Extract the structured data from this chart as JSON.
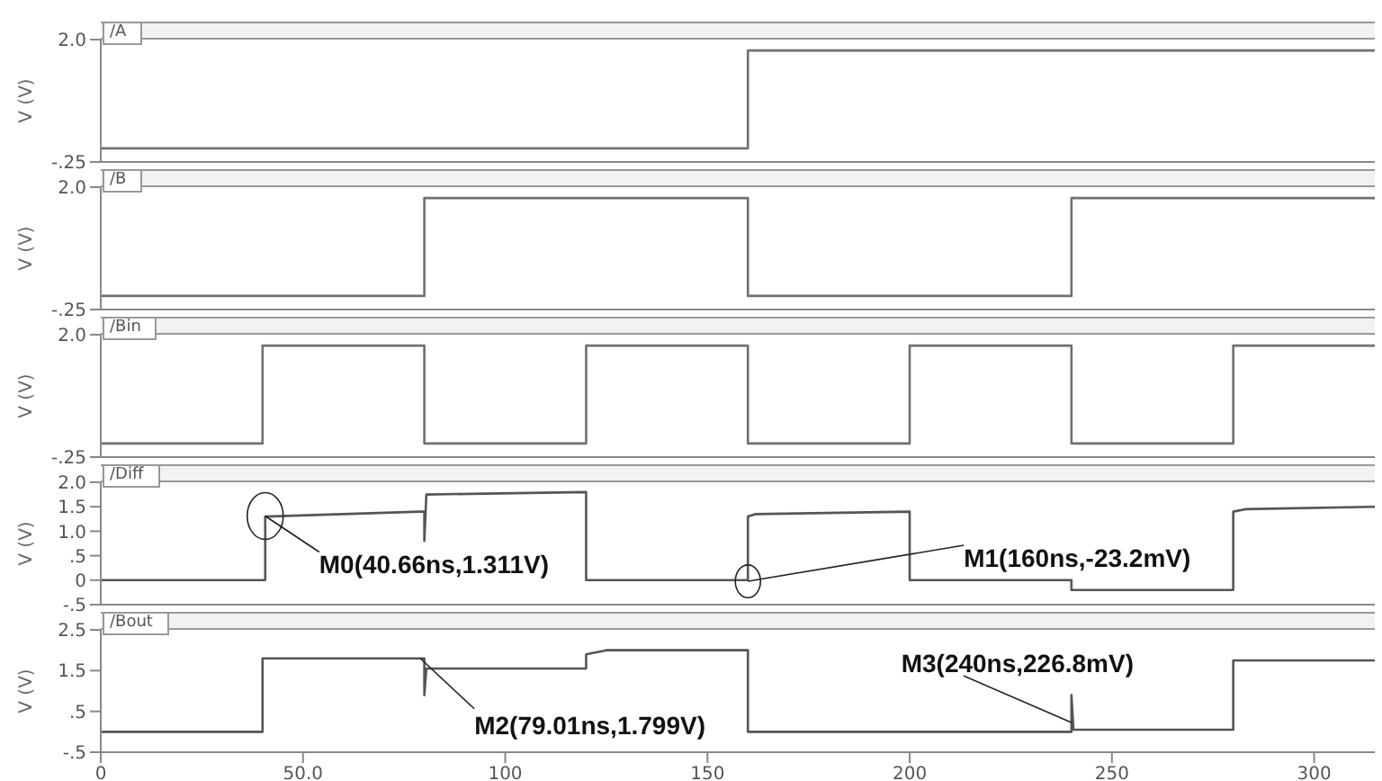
{
  "chart_data": [
    {
      "type": "line",
      "title": "/A",
      "ylabel": "V (V)",
      "tick_labels": "y",
      "xlim": [
        0,
        315
      ],
      "ylim": [
        -0.25,
        2.0
      ],
      "yticks": [
        {
          "value": -0.25,
          "label": "-.25"
        },
        {
          "value": 2.0,
          "label": "2.0"
        }
      ],
      "series": [
        {
          "color": "#707070",
          "x": [
            0,
            160,
            160,
            315
          ],
          "values": [
            0,
            0,
            1.8,
            1.8
          ]
        }
      ]
    },
    {
      "type": "line",
      "title": "/B",
      "ylabel": "V (V)",
      "tick_labels": "y",
      "xlim": [
        0,
        315
      ],
      "ylim": [
        -0.25,
        2.0
      ],
      "yticks": [
        {
          "value": -0.25,
          "label": "-.25"
        },
        {
          "value": 2.0,
          "label": "2.0"
        }
      ],
      "series": [
        {
          "color": "#707070",
          "x": [
            0,
            80,
            80,
            160,
            160,
            240,
            240,
            315
          ],
          "values": [
            0,
            0,
            1.8,
            1.8,
            0,
            0,
            1.8,
            1.8
          ]
        }
      ]
    },
    {
      "type": "line",
      "title": "/Bin",
      "ylabel": "V (V)",
      "tick_labels": "y",
      "xlim": [
        0,
        315
      ],
      "ylim": [
        -0.25,
        2.0
      ],
      "yticks": [
        {
          "value": -0.25,
          "label": "-.25"
        },
        {
          "value": 2.0,
          "label": "2.0"
        }
      ],
      "series": [
        {
          "color": "#707070",
          "x": [
            0,
            40,
            40,
            80,
            80,
            120,
            120,
            160,
            160,
            200,
            200,
            240,
            240,
            280,
            280,
            315
          ],
          "values": [
            0,
            0,
            1.8,
            1.8,
            0,
            0,
            1.8,
            1.8,
            0,
            0,
            1.8,
            1.8,
            0,
            0,
            1.8,
            1.8
          ]
        }
      ]
    },
    {
      "type": "line",
      "title": "/Diff",
      "ylabel": "V (V)",
      "tick_labels": "y",
      "xlim": [
        0,
        315
      ],
      "ylim": [
        -0.5,
        2.0
      ],
      "yticks": [
        {
          "value": -0.5,
          "label": "-.5"
        },
        0,
        {
          "value": 0.5,
          "label": ".5"
        },
        {
          "value": 1.0,
          "label": "1.0"
        },
        1.5,
        {
          "value": 2.0,
          "label": "2.0"
        }
      ],
      "series": [
        {
          "color": "#555555",
          "x": [
            0,
            40.66,
            40.66,
            79.01,
            80,
            80,
            80.5,
            120,
            120,
            160,
            160,
            162,
            200,
            200,
            240,
            240,
            280,
            280,
            283,
            315
          ],
          "values": [
            0,
            0,
            1.3,
            1.4,
            1.4,
            0.8,
            1.75,
            1.8,
            0,
            0,
            1.3,
            1.35,
            1.4,
            0,
            0,
            -0.2,
            -0.2,
            1.4,
            1.45,
            1.5
          ]
        }
      ],
      "annotations": [
        {
          "text": "M0(40.66ns,1.311V)",
          "x": 40.66,
          "y": 1.311
        },
        {
          "text": "M1(160ns,-23.2mV)",
          "x": 160,
          "y": -0.0232
        }
      ]
    },
    {
      "type": "line",
      "title": "/Bout",
      "ylabel": "V (V)",
      "xlim": [
        0,
        315
      ],
      "xticks": [
        0,
        {
          "value": 50,
          "label": "50.0"
        },
        100,
        150,
        200,
        250,
        300
      ],
      "ylim": [
        -0.5,
        2.5
      ],
      "yticks": [
        {
          "value": -0.5,
          "label": "-.5"
        },
        {
          "value": 0.5,
          "label": ".5"
        },
        1.5,
        2.5
      ],
      "series": [
        {
          "color": "#555555",
          "x": [
            0,
            40,
            40,
            79.01,
            80,
            80,
            80.5,
            120,
            120,
            125,
            160,
            160,
            240,
            240,
            240.5,
            280,
            280,
            315
          ],
          "values": [
            0,
            0,
            1.8,
            1.8,
            1.8,
            0.9,
            1.55,
            1.55,
            1.9,
            2.0,
            2.0,
            0,
            0,
            0.9,
            0.05,
            0.05,
            1.75,
            1.75
          ]
        }
      ],
      "annotations": [
        {
          "text": "M2(79.01ns,1.799V)",
          "x": 79.01,
          "y": 1.799
        },
        {
          "text": "M3(240ns,226.8mV)",
          "x": 240,
          "y": 0.2268
        }
      ]
    }
  ]
}
